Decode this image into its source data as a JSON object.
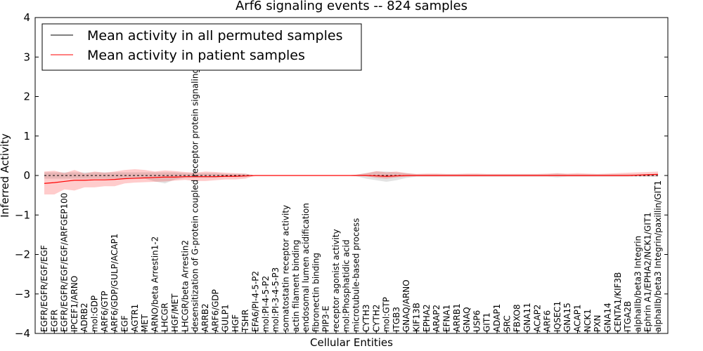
{
  "chart_data": {
    "type": "line",
    "title": "Arf6 signaling events -- 824 samples",
    "xlabel": "Cellular Entities",
    "ylabel": "Inferred Activity",
    "ylim": [
      -4,
      4
    ],
    "yticks": [
      -4,
      -3,
      -2,
      -1,
      0,
      1,
      2,
      3,
      4
    ],
    "ytick_labels": [
      "−4",
      "−3",
      "−2",
      "−1",
      "0",
      "1",
      "2",
      "3",
      "4"
    ],
    "legend_location": "upper-left",
    "categories": [
      "EGFR/EGFR/EGF/EGF",
      "EGFR",
      "EGFR/EGFR/EGF/EGF/ARFGEP100",
      "IPCEF1/ARNO",
      "ADRB2",
      "mol:GDP",
      "ARF6/GTP",
      "ARF6/GDP/GULP/ACAP1",
      "EGF",
      "AGTR1",
      "MET",
      "ARNO/beta Arrestin1-2",
      "LHCGR",
      "HGF/MET",
      "LHCGR/beta Arrestin2",
      "desensitization of G-protein coupled receptor protein signaling pathway",
      "ARRB2",
      "ARF6/GDP",
      "GULP1",
      "HGF",
      "TSHR",
      "EFA6/PI-4-5-P2",
      "mol:PI-4-5-P2",
      "mol:PI-3-4-5-P3",
      "somatostatin receptor activity",
      "actin filament binding",
      "endosomal lumen acidification",
      "fibronectin binding",
      "PIP3-E",
      "receptor agonist activity",
      "mol:Phosphatidic acid",
      "microtubule-based process",
      "CYTH3",
      "CYTH2",
      "mol:GTP",
      "ITGB3",
      "GNAQ/ARNO",
      "KIF13B",
      "EPHA2",
      "ARAP2",
      "EFNA1",
      "ARRB1",
      "GNAQ",
      "USP6",
      "GIT1",
      "ADAP1",
      "SRC",
      "FBXO8",
      "GNA11",
      "ACAP2",
      "ARF6",
      "IQSEC1",
      "GNA15",
      "ACAP1",
      "NCK1",
      "PXN",
      "GNA14",
      "CENTA1/KIF3B",
      "ITGA2B",
      "alphaIIb/beta3 Integrin",
      "Ephrin A1/EPHA2/NCK1/GIT1",
      "alphaIIb/beta3 Integrin/paxillin/GIT1"
    ],
    "series": [
      {
        "name": "Mean activity in all permuted samples",
        "color": "#000000",
        "values": [
          0.0,
          0.0,
          0.0,
          0.0,
          0.0,
          0.0,
          0.0,
          0.0,
          0.0,
          0.0,
          0.0,
          0.0,
          0.0,
          0.0,
          0.0,
          0.0,
          0.0,
          0.0,
          0.0,
          0.0,
          0.0,
          0.0,
          0.0,
          0.0,
          0.0,
          0.0,
          0.0,
          0.0,
          0.0,
          0.0,
          0.0,
          0.0,
          0.0,
          0.0,
          0.0,
          0.0,
          0.0,
          0.0,
          0.0,
          0.0,
          0.0,
          0.0,
          0.0,
          0.0,
          0.0,
          0.0,
          0.0,
          0.0,
          0.0,
          0.0,
          0.0,
          0.0,
          0.0,
          0.0,
          0.0,
          0.0,
          0.0,
          0.0,
          0.0,
          0.0,
          0.0,
          0.0
        ],
        "band_low": [
          -0.08,
          -0.08,
          -0.08,
          -0.08,
          -0.08,
          -0.08,
          -0.08,
          -0.08,
          -0.08,
          -0.08,
          -0.08,
          -0.15,
          -0.2,
          -0.1,
          -0.06,
          -0.06,
          -0.06,
          -0.06,
          -0.04,
          -0.04,
          -0.04,
          0.0,
          0.0,
          0.0,
          0.0,
          0.0,
          0.0,
          0.0,
          0.0,
          0.0,
          0.0,
          -0.02,
          -0.08,
          -0.12,
          -0.16,
          -0.12,
          -0.06,
          -0.03,
          -0.03,
          -0.03,
          -0.03,
          -0.03,
          -0.03,
          -0.03,
          -0.03,
          -0.03,
          -0.03,
          -0.03,
          -0.03,
          -0.03,
          -0.03,
          -0.05,
          -0.03,
          -0.03,
          -0.03,
          -0.03,
          -0.03,
          -0.03,
          -0.03,
          -0.03,
          -0.03,
          -0.03
        ],
        "band_high": [
          0.08,
          0.08,
          0.08,
          0.08,
          0.08,
          0.08,
          0.08,
          0.08,
          0.08,
          0.08,
          0.08,
          0.08,
          0.08,
          0.08,
          0.06,
          0.06,
          0.06,
          0.06,
          0.04,
          0.04,
          0.04,
          0.0,
          0.0,
          0.0,
          0.0,
          0.0,
          0.0,
          0.0,
          0.0,
          0.0,
          0.0,
          0.02,
          0.06,
          0.1,
          0.1,
          0.08,
          0.06,
          0.03,
          0.03,
          0.03,
          0.03,
          0.03,
          0.03,
          0.03,
          0.03,
          0.03,
          0.03,
          0.03,
          0.03,
          0.03,
          0.03,
          0.05,
          0.03,
          0.03,
          0.03,
          0.03,
          0.03,
          0.03,
          0.03,
          0.03,
          0.03,
          0.03
        ]
      },
      {
        "name": "Mean activity in patient samples",
        "color": "#ff0000",
        "values": [
          -0.2,
          -0.18,
          -0.15,
          -0.12,
          -0.12,
          -0.11,
          -0.11,
          -0.1,
          -0.08,
          -0.07,
          -0.06,
          -0.05,
          -0.04,
          -0.04,
          -0.03,
          -0.03,
          -0.03,
          -0.03,
          -0.02,
          -0.02,
          -0.01,
          0.0,
          0.0,
          0.0,
          0.0,
          0.0,
          0.0,
          0.0,
          0.0,
          0.0,
          0.0,
          0.0,
          0.0,
          -0.01,
          -0.02,
          -0.01,
          0.0,
          0.0,
          0.0,
          0.0,
          0.0,
          0.0,
          0.0,
          0.0,
          0.0,
          0.0,
          0.0,
          0.0,
          0.0,
          0.0,
          0.0,
          0.0,
          0.0,
          0.0,
          0.0,
          0.0,
          0.0,
          0.0,
          0.0,
          0.01,
          0.02,
          0.03
        ],
        "band_low": [
          -0.48,
          -0.48,
          -0.35,
          -0.38,
          -0.3,
          -0.3,
          -0.27,
          -0.27,
          -0.2,
          -0.18,
          -0.17,
          -0.16,
          -0.15,
          -0.13,
          -0.11,
          -0.14,
          -0.14,
          -0.12,
          -0.1,
          -0.1,
          -0.08,
          0.0,
          0.0,
          0.0,
          0.0,
          0.0,
          0.0,
          0.0,
          0.0,
          0.0,
          0.0,
          0.0,
          -0.02,
          -0.06,
          -0.08,
          -0.05,
          -0.03,
          -0.02,
          -0.02,
          -0.02,
          -0.02,
          -0.02,
          -0.02,
          -0.02,
          -0.02,
          -0.02,
          -0.02,
          -0.02,
          -0.02,
          -0.02,
          -0.02,
          -0.02,
          -0.02,
          -0.02,
          -0.02,
          -0.02,
          -0.02,
          -0.02,
          -0.02,
          -0.02,
          -0.02,
          -0.02
        ],
        "band_high": [
          0.1,
          0.12,
          0.06,
          0.14,
          0.05,
          0.1,
          0.07,
          0.1,
          0.14,
          0.16,
          0.14,
          0.1,
          0.13,
          0.11,
          0.09,
          0.07,
          0.1,
          0.09,
          0.07,
          0.06,
          0.05,
          0.0,
          0.0,
          0.0,
          0.0,
          0.0,
          0.0,
          0.0,
          0.0,
          0.0,
          0.0,
          0.02,
          0.06,
          0.11,
          0.08,
          0.1,
          0.06,
          0.04,
          0.05,
          0.05,
          0.04,
          0.04,
          0.05,
          0.05,
          0.04,
          0.04,
          0.04,
          0.04,
          0.04,
          0.04,
          0.05,
          0.06,
          0.05,
          0.06,
          0.05,
          0.04,
          0.05,
          0.06,
          0.07,
          0.08,
          0.09,
          0.1
        ]
      }
    ]
  }
}
